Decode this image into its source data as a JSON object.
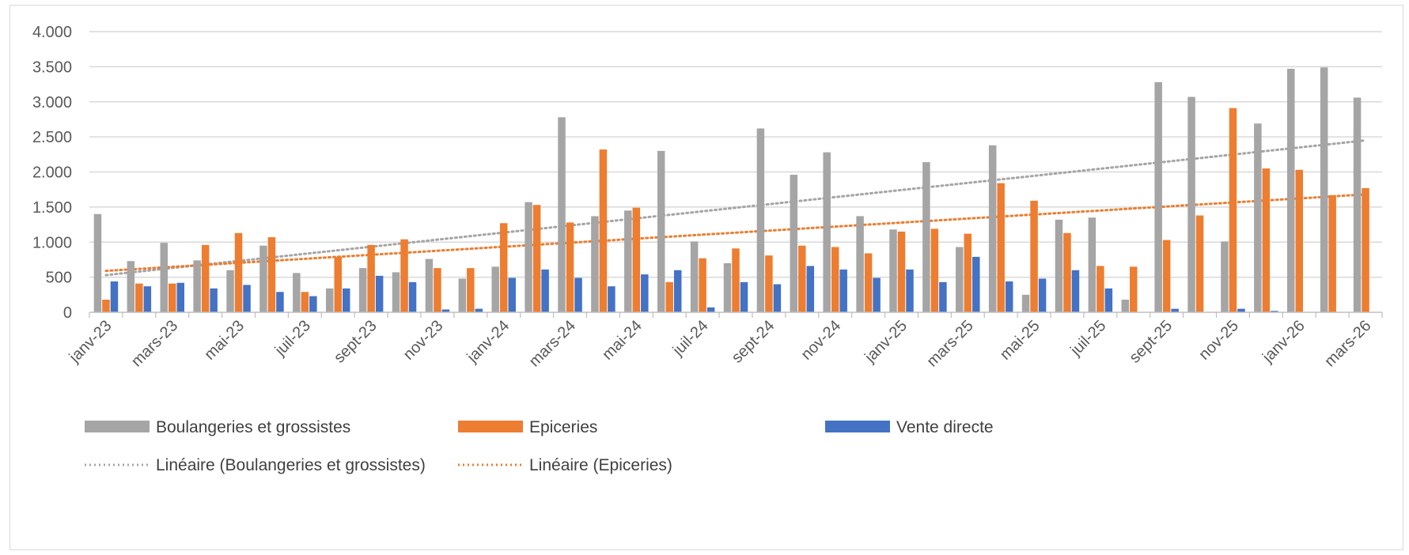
{
  "chart_data": {
    "type": "bar",
    "title": "",
    "xlabel": "",
    "ylabel": "",
    "ylim": [
      0,
      4000
    ],
    "yticks": [
      0,
      500,
      1000,
      1500,
      2000,
      2500,
      3000,
      3500,
      4000
    ],
    "ytick_labels": [
      "0",
      "500",
      "1.000",
      "1.500",
      "2.000",
      "2.500",
      "3.000",
      "3.500",
      "4.000"
    ],
    "grid": true,
    "legend_position": "bottom",
    "categories": [
      "janv-23",
      "févr-23",
      "mars-23",
      "avr-23",
      "mai-23",
      "juin-23",
      "juil-23",
      "août-23",
      "sept-23",
      "oct-23",
      "nov-23",
      "déc-23",
      "janv-24",
      "févr-24",
      "mars-24",
      "avr-24",
      "mai-24",
      "juin-24",
      "juil-24",
      "août-24",
      "sept-24",
      "oct-24",
      "nov-24",
      "déc-24",
      "janv-25",
      "févr-25",
      "mars-25",
      "avr-25",
      "mai-25",
      "juin-25",
      "juil-25",
      "août-25",
      "sept-25",
      "oct-25",
      "nov-25",
      "déc-25",
      "janv-26",
      "févr-26",
      "mars-26"
    ],
    "x_tick_labels": [
      "janv-23",
      "mars-23",
      "mai-23",
      "juil-23",
      "sept-23",
      "nov-23",
      "janv-24",
      "mars-24",
      "mai-24",
      "juil-24",
      "sept-24",
      "nov-24",
      "janv-25",
      "mars-25",
      "mai-25",
      "juil-25",
      "sept-25",
      "nov-25",
      "janv-26",
      "mars-26"
    ],
    "series": [
      {
        "name": "Boulangeries et grossistes",
        "color": "#a5a5a5",
        "values": [
          1400,
          730,
          990,
          740,
          600,
          950,
          560,
          340,
          630,
          570,
          760,
          480,
          650,
          1570,
          2780,
          1370,
          1450,
          2300,
          1010,
          700,
          2620,
          1960,
          2280,
          1370,
          1180,
          2140,
          930,
          2380,
          250,
          1320,
          1350,
          180,
          3280,
          3070,
          1010,
          2690,
          3470,
          3490,
          3060
        ]
      },
      {
        "name": "Epiceries",
        "color": "#ed7d31",
        "values": [
          180,
          410,
          410,
          960,
          1130,
          1070,
          290,
          790,
          960,
          1040,
          630,
          630,
          1270,
          1530,
          1280,
          2320,
          1490,
          430,
          770,
          910,
          810,
          950,
          930,
          840,
          1150,
          1190,
          1120,
          1840,
          1590,
          1130,
          660,
          650,
          1030,
          1380,
          2910,
          2050,
          2030,
          1670,
          1770
        ]
      },
      {
        "name": "Vente directe",
        "color": "#4472c4",
        "values": [
          440,
          370,
          420,
          340,
          390,
          290,
          230,
          340,
          520,
          430,
          40,
          50,
          490,
          610,
          490,
          370,
          540,
          600,
          70,
          430,
          400,
          660,
          610,
          490,
          610,
          430,
          790,
          440,
          480,
          600,
          340,
          0,
          50,
          0,
          50,
          20,
          0,
          0,
          0
        ]
      }
    ],
    "trendlines": [
      {
        "name": "Linéaire (Boulangeries et grossistes)",
        "color": "#a5a5a5",
        "start": 530,
        "end": 2450
      },
      {
        "name": "Linéaire (Epiceries)",
        "color": "#ed7d31",
        "start": 590,
        "end": 1680
      }
    ]
  }
}
